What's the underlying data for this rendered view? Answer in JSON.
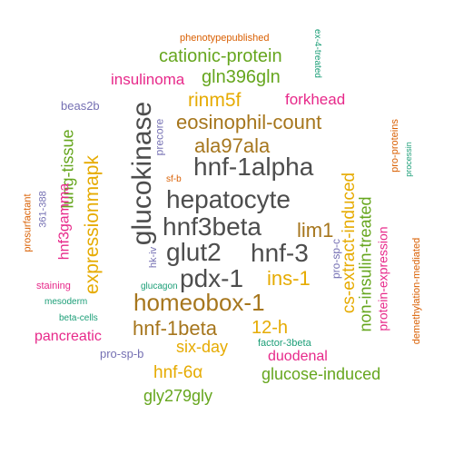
{
  "words": [
    {
      "text": "hepatocyte",
      "color": "#4d4d4d",
      "rotated": false
    },
    {
      "text": "hnf-1alpha",
      "color": "#4d4d4d",
      "rotated": false
    },
    {
      "text": "hnf3beta",
      "color": "#4d4d4d",
      "rotated": false
    },
    {
      "text": "glucokinase",
      "color": "#4d4d4d",
      "rotated": true
    },
    {
      "text": "glut2",
      "color": "#4d4d4d",
      "rotated": false
    },
    {
      "text": "hnf-3",
      "color": "#4d4d4d",
      "rotated": false
    },
    {
      "text": "pdx-1",
      "color": "#4d4d4d",
      "rotated": false
    },
    {
      "text": "homeobox-1",
      "color": "#a6761d",
      "rotated": false
    },
    {
      "text": "eosinophil-count",
      "color": "#a6761d",
      "rotated": false
    },
    {
      "text": "ala97ala",
      "color": "#a6761d",
      "rotated": false
    },
    {
      "text": "lim1",
      "color": "#a6761d",
      "rotated": false
    },
    {
      "text": "hnf-1beta",
      "color": "#a6761d",
      "rotated": false
    },
    {
      "text": "ins-1",
      "color": "#e6ab02",
      "rotated": false
    },
    {
      "text": "rinm5f",
      "color": "#e6ab02",
      "rotated": false
    },
    {
      "text": "expressionmapk",
      "color": "#e6ab02",
      "rotated": true
    },
    {
      "text": "cs-extract-induced",
      "color": "#e6ab02",
      "rotated": true
    },
    {
      "text": "12-h",
      "color": "#e6ab02",
      "rotated": false
    },
    {
      "text": "six-day",
      "color": "#e6ab02",
      "rotated": false
    },
    {
      "text": "hnf-6α",
      "color": "#e6ab02",
      "rotated": false
    },
    {
      "text": "cationic-protein",
      "color": "#66a61e",
      "rotated": false
    },
    {
      "text": "gln396gln",
      "color": "#66a61e",
      "rotated": false
    },
    {
      "text": "lung-tissue",
      "color": "#66a61e",
      "rotated": true
    },
    {
      "text": "non-insulin-treated",
      "color": "#66a61e",
      "rotated": true
    },
    {
      "text": "glucose-induced",
      "color": "#66a61e",
      "rotated": false
    },
    {
      "text": "gly279gly",
      "color": "#66a61e",
      "rotated": false
    },
    {
      "text": "insulinoma",
      "color": "#e7298a",
      "rotated": false
    },
    {
      "text": "forkhead",
      "color": "#e7298a",
      "rotated": false
    },
    {
      "text": "hnf3gamma",
      "color": "#e7298a",
      "rotated": true
    },
    {
      "text": "pancreatic",
      "color": "#e7298a",
      "rotated": false
    },
    {
      "text": "protein-expression",
      "color": "#e7298a",
      "rotated": true
    },
    {
      "text": "duodenal",
      "color": "#e7298a",
      "rotated": false
    },
    {
      "text": "staining",
      "color": "#e7298a",
      "rotated": false
    },
    {
      "text": "phenotypepublished",
      "color": "#d95f02",
      "rotated": false
    },
    {
      "text": "sf-b",
      "color": "#d95f02",
      "rotated": false
    },
    {
      "text": "pro-proteins",
      "color": "#d95f02",
      "rotated": true
    },
    {
      "text": "demethylation-mediated",
      "color": "#d95f02",
      "rotated": true
    },
    {
      "text": "prosurfactant",
      "color": "#d95f02",
      "rotated": true
    },
    {
      "text": "beas2b",
      "color": "#7570b3",
      "rotated": false
    },
    {
      "text": "precore",
      "color": "#7570b3",
      "rotated": true
    },
    {
      "text": "361-388",
      "color": "#7570b3",
      "rotated": true
    },
    {
      "text": "hk-iv",
      "color": "#7570b3",
      "rotated": true
    },
    {
      "text": "pro-sp-c",
      "color": "#7570b3",
      "rotated": true
    },
    {
      "text": "pro-sp-b",
      "color": "#7570b3",
      "rotated": false
    },
    {
      "text": "ex-4-treated",
      "color": "#1b9e77",
      "rotated": true
    },
    {
      "text": "processin",
      "color": "#1b9e77",
      "rotated": true
    },
    {
      "text": "glucagon",
      "color": "#1b9e77",
      "rotated": false
    },
    {
      "text": "mesoderm",
      "color": "#1b9e77",
      "rotated": false
    },
    {
      "text": "beta-cells",
      "color": "#1b9e77",
      "rotated": false
    },
    {
      "text": "factor-3beta",
      "color": "#1b9e77",
      "rotated": false
    }
  ]
}
